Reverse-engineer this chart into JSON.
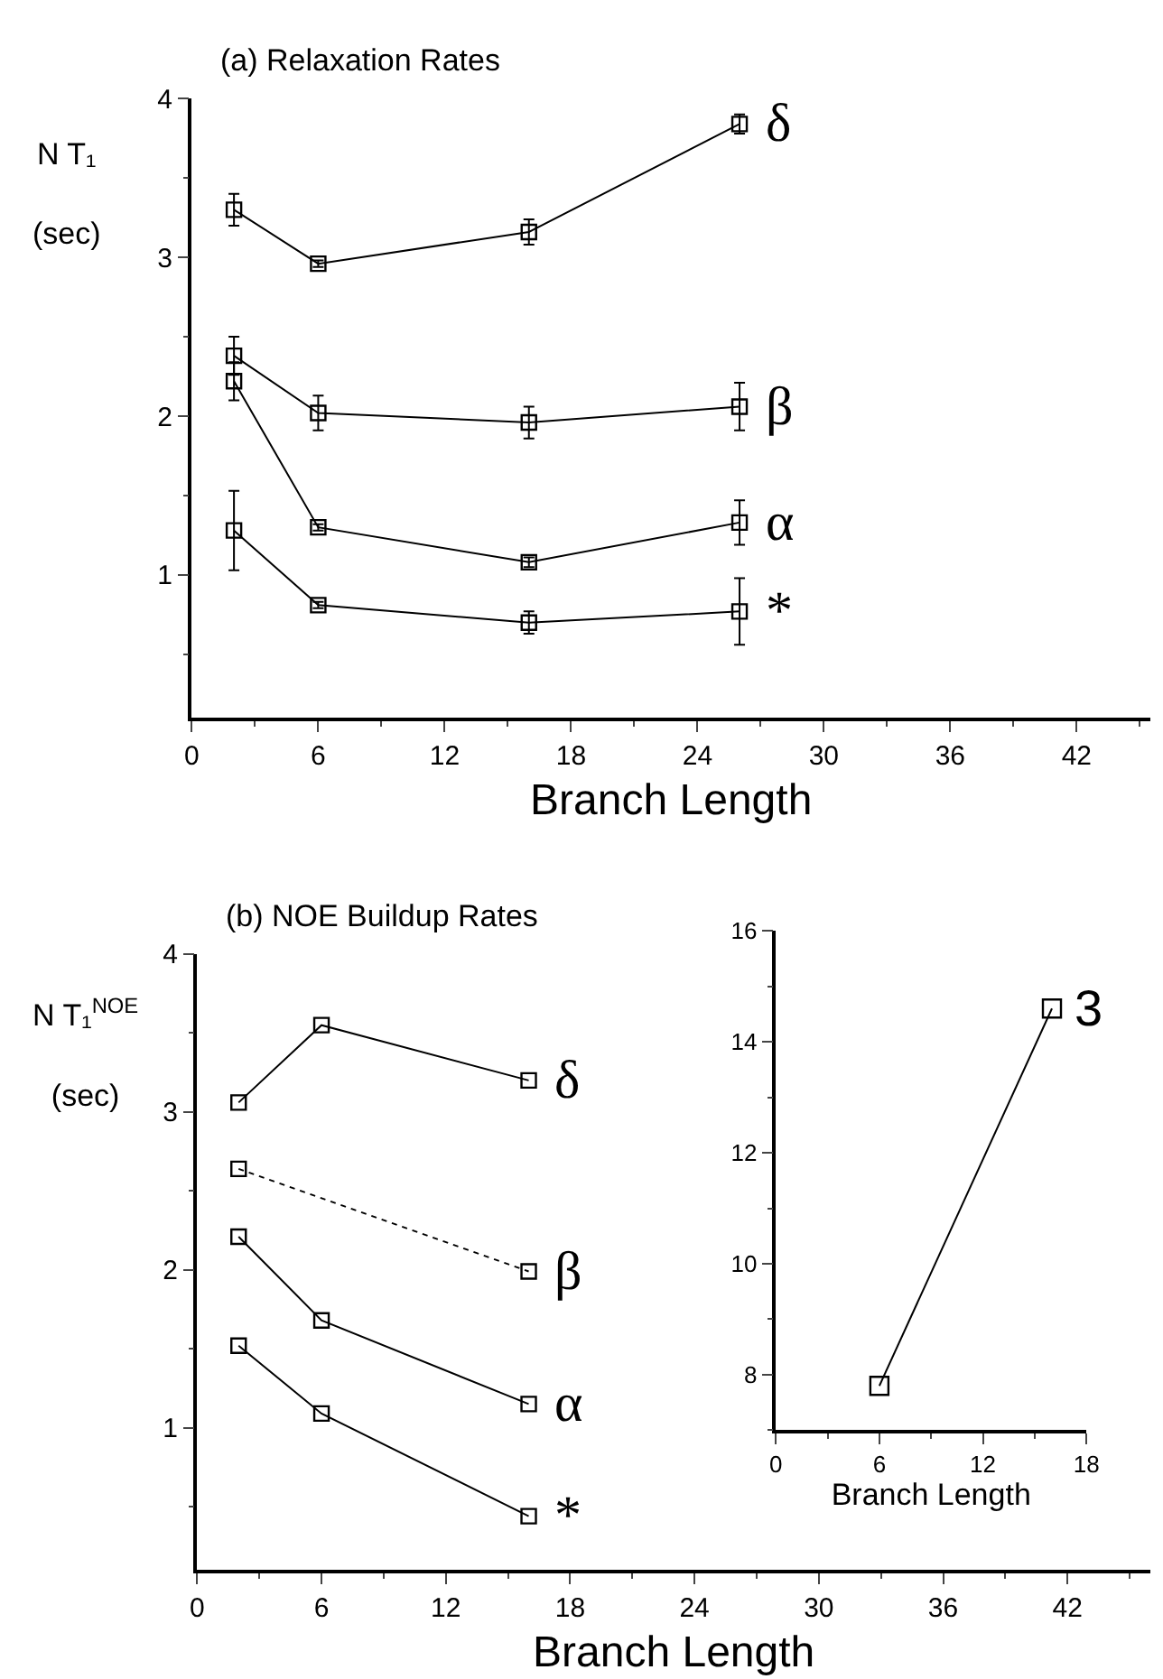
{
  "chart_data": [
    {
      "type": "line",
      "title": "(a) Relaxation Rates",
      "xlabel": "Branch Length",
      "ylabel": "N T₁\n(sec)",
      "x": [
        2,
        6,
        16,
        26
      ],
      "xlim": [
        0,
        45.5
      ],
      "xticks": [
        0,
        6,
        12,
        18,
        24,
        30,
        36,
        42
      ],
      "ylim": [
        0.1,
        4
      ],
      "yticks": [
        1,
        2,
        3,
        4
      ],
      "marker": "square",
      "line_style": "solid",
      "legend": false,
      "series": [
        {
          "name": "δ",
          "color": "#000000",
          "values": [
            3.3,
            2.96,
            3.16,
            3.84
          ],
          "errors": [
            0.1,
            0.02,
            0.08,
            0.06
          ]
        },
        {
          "name": "β",
          "color": "#000000",
          "values": [
            2.38,
            2.02,
            1.96,
            2.06
          ],
          "errors": [
            0.12,
            0.11,
            0.1,
            0.15
          ]
        },
        {
          "name": "α",
          "color": "#000000",
          "values": [
            2.22,
            1.3,
            1.08,
            1.33
          ],
          "errors": [
            0.12,
            0.02,
            0.03,
            0.14
          ]
        },
        {
          "name": "*",
          "color": "#000000",
          "values": [
            1.28,
            0.81,
            0.7,
            0.77
          ],
          "errors": [
            0.25,
            0.02,
            0.07,
            0.21
          ]
        }
      ]
    },
    {
      "type": "line",
      "title": "(b) NOE Buildup Rates",
      "xlabel": "Branch Length",
      "ylabel": "N T₁$^{NOE}$\n(sec)",
      "x": [
        2,
        6,
        16
      ],
      "xlim": [
        0,
        46
      ],
      "xticks": [
        0,
        6,
        12,
        18,
        24,
        30,
        36,
        42
      ],
      "ylim": [
        0.1,
        4
      ],
      "yticks": [
        1,
        2,
        3,
        4
      ],
      "marker": "square",
      "line_style": "solid",
      "legend": false,
      "series": [
        {
          "name": "δ",
          "color": "#000000",
          "values": [
            3.06,
            3.55,
            3.2
          ]
        },
        {
          "name": "β",
          "color": "#000000",
          "values": [
            2.64,
            null,
            1.99
          ],
          "line_style": "dotted"
        },
        {
          "name": "α",
          "color": "#000000",
          "values": [
            2.21,
            1.68,
            1.15
          ]
        },
        {
          "name": "*",
          "color": "#000000",
          "values": [
            1.52,
            1.09,
            0.44
          ]
        }
      ]
    },
    {
      "type": "line",
      "xlabel": "Branch Length",
      "x": [
        6,
        16
      ],
      "xlim": [
        0,
        18
      ],
      "xticks": [
        0,
        6,
        12,
        18
      ],
      "ylim": [
        7,
        16
      ],
      "yticks": [
        8,
        10,
        12,
        14,
        16
      ],
      "marker": "square",
      "line_style": "solid",
      "legend": false,
      "series": [
        {
          "name": "3",
          "color": "#000000",
          "values": [
            7.8,
            14.6
          ]
        }
      ]
    }
  ]
}
